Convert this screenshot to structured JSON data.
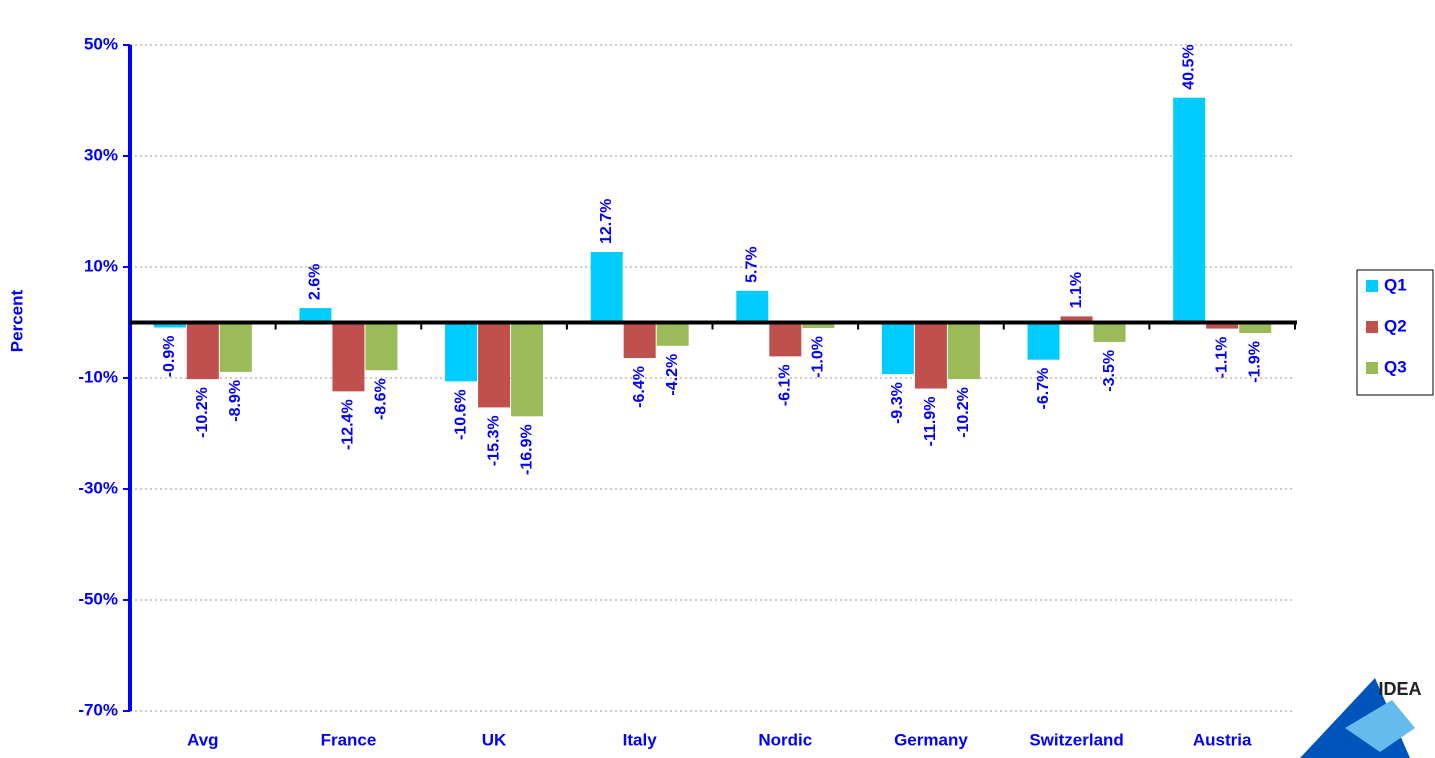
{
  "chart_data": {
    "type": "bar",
    "ylabel": "Percent",
    "categories": [
      "Avg",
      "France",
      "UK",
      "Italy",
      "Nordic",
      "Germany",
      "Switzerland",
      "Austria"
    ],
    "series": [
      {
        "name": "Q1",
        "color": "#00ccff",
        "values": [
          -0.9,
          2.6,
          -10.6,
          12.7,
          5.7,
          -9.3,
          -6.7,
          40.5
        ],
        "value_labels": [
          "-0.9%",
          "2.6%",
          "-10.6%",
          "12.7%",
          "5.7%",
          "-9.3%",
          "-6.7%",
          "40.5%"
        ]
      },
      {
        "name": "Q2",
        "color": "#c0504d",
        "values": [
          -10.2,
          -12.4,
          -15.3,
          -6.4,
          -6.1,
          -11.9,
          1.1,
          -1.1
        ],
        "value_labels": [
          "-10.2%",
          "-12.4%",
          "-15.3%",
          "-6.4%",
          "-6.1%",
          "-11.9%",
          "1.1%",
          "-1.1%"
        ]
      },
      {
        "name": "Q3",
        "color": "#9bbb59",
        "values": [
          -8.9,
          -8.6,
          -16.9,
          -4.2,
          -1.0,
          -10.2,
          -3.5,
          -1.9
        ],
        "value_labels": [
          "-8.9%",
          "-8.6%",
          "-16.9%",
          "-4.2%",
          "-1.0%",
          "-10.2%",
          "-3.5%",
          "-1.9%"
        ]
      }
    ],
    "ylim": [
      -70,
      50
    ],
    "yticks": [
      {
        "value": -70,
        "label": "-70%"
      },
      {
        "value": -50,
        "label": "-50%"
      },
      {
        "value": -30,
        "label": "-30%"
      },
      {
        "value": -10,
        "label": "-10%"
      },
      {
        "value": 10,
        "label": "10%"
      },
      {
        "value": 30,
        "label": "30%"
      },
      {
        "value": 50,
        "label": "50%"
      }
    ],
    "grid": true,
    "legend": "right"
  },
  "logo": "IDEA"
}
